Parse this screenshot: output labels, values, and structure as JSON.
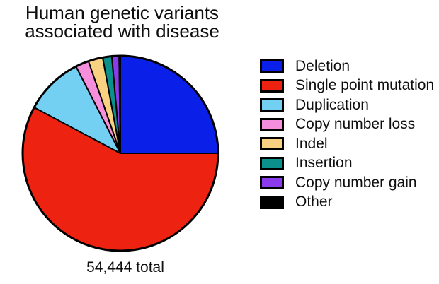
{
  "title": {
    "line1": "Human genetic variants",
    "line2": "associated with disease"
  },
  "caption": "54,444 total",
  "chart_data": {
    "type": "pie",
    "title": "Human genetic variants associated with disease",
    "total": 54444,
    "total_label": "54,444 total",
    "start_angle": "top",
    "direction": "clockwise",
    "outline_color": "#000000",
    "legend_position": "right",
    "slices": [
      {
        "label": "Deletion",
        "percent": 25.0,
        "color": "#0a20e8"
      },
      {
        "label": "Single point mutation",
        "percent": 57.8,
        "color": "#ee2211"
      },
      {
        "label": "Duplication",
        "percent": 9.7,
        "color": "#74d0f2"
      },
      {
        "label": "Copy number loss",
        "percent": 2.2,
        "color": "#f58fdb"
      },
      {
        "label": "Indel",
        "percent": 2.4,
        "color": "#f8d181"
      },
      {
        "label": "Insertion",
        "percent": 1.5,
        "color": "#0b918b"
      },
      {
        "label": "Copy number gain",
        "percent": 1.2,
        "color": "#8a3ced"
      },
      {
        "label": "Other",
        "percent": 0.2,
        "color": "#000000"
      }
    ]
  }
}
